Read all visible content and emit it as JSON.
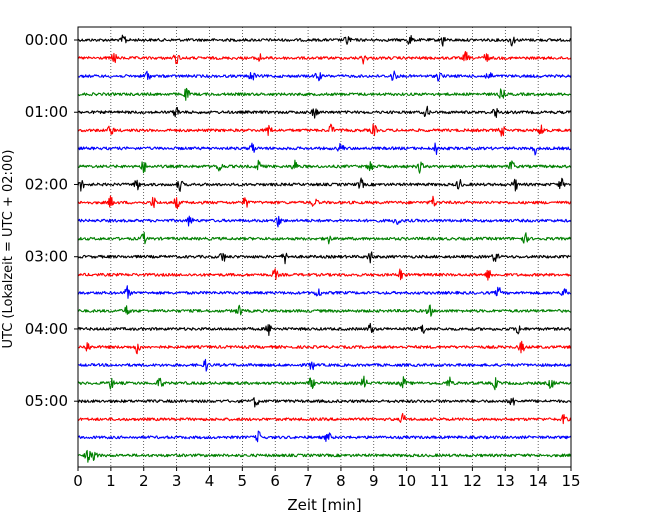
{
  "chart_data": {
    "type": "line",
    "title": "",
    "xlabel": "Zeit  [min]",
    "ylabel": "UTC (Lokalzeit = UTC + 02:00)",
    "xlim": [
      0,
      15
    ],
    "x_ticks": [
      0,
      1,
      2,
      3,
      4,
      5,
      6,
      7,
      8,
      9,
      10,
      11,
      12,
      13,
      14,
      15
    ],
    "x_tick_labels": [
      "0",
      "1",
      "2",
      "3",
      "4",
      "5",
      "6",
      "7",
      "8",
      "9",
      "10",
      "11",
      "12",
      "13",
      "14",
      "15"
    ],
    "y_tick_labels": [
      "00:00",
      "01:00",
      "02:00",
      "03:00",
      "04:00",
      "05:00"
    ],
    "grid": "vertical dotted",
    "trace_minutes": 15,
    "trace_colors": [
      "#000000",
      "#ff0000",
      "#0000ff",
      "#008000"
    ],
    "series": [
      {
        "start": "00:00",
        "events_min": [
          1.4,
          8.2,
          10.1,
          11.1,
          13.2
        ]
      },
      {
        "start": "00:15",
        "events_min": [
          1.1,
          3.0,
          5.5,
          8.7,
          11.8,
          12.4
        ]
      },
      {
        "start": "00:30",
        "events_min": [
          2.1,
          5.3,
          7.3,
          9.6,
          11.0,
          12.5
        ]
      },
      {
        "start": "00:45",
        "events_min": [
          3.3,
          12.9
        ]
      },
      {
        "start": "01:00",
        "events_min": [
          3.0,
          7.2,
          10.6,
          12.7
        ]
      },
      {
        "start": "01:15",
        "events_min": [
          1.0,
          5.8,
          7.7,
          9.0,
          12.9,
          14.1
        ]
      },
      {
        "start": "01:30",
        "events_min": [
          5.3,
          8.0,
          10.9,
          13.9
        ]
      },
      {
        "start": "01:45",
        "events_min": [
          2.0,
          4.3,
          5.5,
          6.6,
          8.9,
          10.4,
          13.2
        ]
      },
      {
        "start": "02:00",
        "events_min": [
          0.1,
          1.8,
          3.1,
          8.6,
          11.6,
          13.3,
          14.7
        ]
      },
      {
        "start": "02:15",
        "events_min": [
          1.0,
          2.3,
          3.0,
          5.1,
          7.2,
          10.8
        ]
      },
      {
        "start": "02:30",
        "events_min": [
          3.4,
          6.1,
          9.7
        ]
      },
      {
        "start": "02:45",
        "events_min": [
          2.0,
          7.6,
          13.6
        ]
      },
      {
        "start": "03:00",
        "events_min": [
          4.4,
          6.3,
          8.9,
          12.7
        ]
      },
      {
        "start": "03:15",
        "events_min": [
          6.0,
          9.8,
          12.5
        ]
      },
      {
        "start": "03:30",
        "events_min": [
          1.5,
          7.3,
          12.8,
          14.8
        ]
      },
      {
        "start": "03:45",
        "events_min": [
          1.5,
          4.9,
          10.7
        ]
      },
      {
        "start": "04:00",
        "events_min": [
          5.8,
          8.9,
          10.5,
          13.4
        ]
      },
      {
        "start": "04:15",
        "events_min": [
          0.3,
          1.8,
          13.5
        ]
      },
      {
        "start": "04:30",
        "events_min": [
          3.9,
          7.1
        ]
      },
      {
        "start": "04:45",
        "events_min": [
          1.0,
          2.5,
          7.1,
          8.7,
          9.9,
          11.3,
          12.7,
          14.4
        ]
      },
      {
        "start": "05:00",
        "events_min": [
          5.4,
          13.2
        ]
      },
      {
        "start": "05:15",
        "events_min": [
          9.9,
          14.8
        ]
      },
      {
        "start": "05:30",
        "events_min": [
          5.5,
          7.6
        ]
      },
      {
        "start": "05:45",
        "events_min": [
          0.3,
          0.5
        ]
      }
    ]
  }
}
